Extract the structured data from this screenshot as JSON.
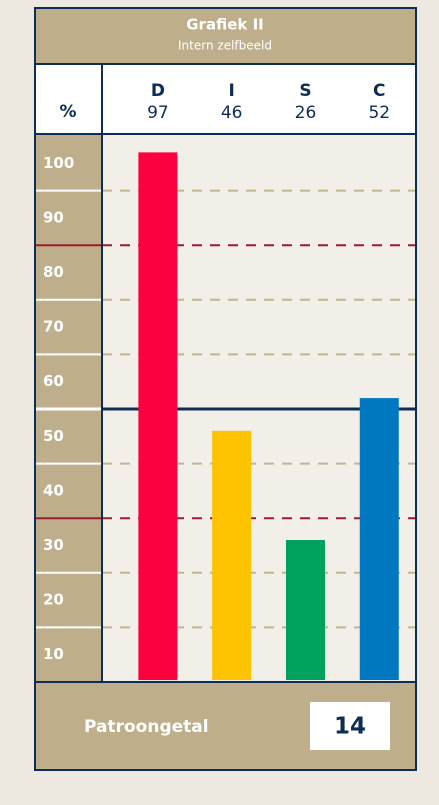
{
  "chart_data": {
    "type": "bar",
    "title": "Grafiek II",
    "subtitle": "Intern zelfbeeld",
    "y_label": "%",
    "categories": [
      "D",
      "I",
      "S",
      "C"
    ],
    "values": [
      97,
      46,
      26,
      52
    ],
    "colors": [
      "#fc0140",
      "#fdc300",
      "#00a05d",
      "#0078c1"
    ],
    "ylim": [
      0,
      100
    ],
    "yticks": [
      100,
      90,
      80,
      70,
      60,
      50,
      40,
      30,
      20,
      10
    ],
    "grid_lines": [
      90,
      80,
      70,
      60,
      50,
      40,
      30,
      20,
      10
    ],
    "red_lines": [
      80,
      30
    ],
    "midline": 50,
    "footer_label": "Patroongetal",
    "footer_value": 14
  }
}
